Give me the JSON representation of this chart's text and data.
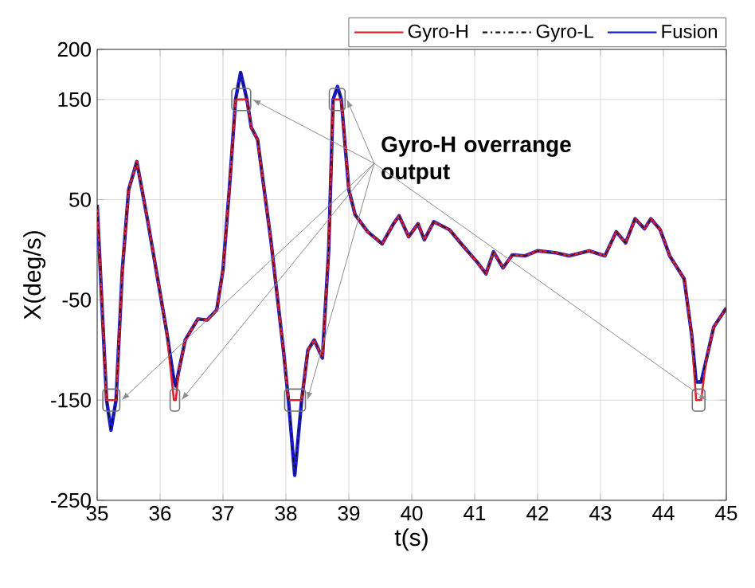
{
  "chart_data": {
    "type": "line",
    "xlabel": "t(s)",
    "ylabel": "X(deg/s)",
    "x": [
      35.0,
      35.08,
      35.15,
      35.22,
      35.3,
      35.4,
      35.5,
      35.63,
      35.8,
      35.94,
      36.1,
      36.22,
      36.25,
      36.3,
      36.4,
      36.6,
      36.75,
      36.9,
      37.0,
      37.1,
      37.2,
      37.28,
      37.38,
      37.45,
      37.55,
      37.76,
      37.96,
      38.04,
      38.14,
      38.25,
      38.35,
      38.45,
      38.58,
      38.68,
      38.75,
      38.82,
      38.88,
      39.0,
      39.1,
      39.3,
      39.53,
      39.7,
      39.8,
      39.95,
      40.1,
      40.2,
      40.35,
      40.6,
      40.8,
      41.05,
      41.18,
      41.3,
      41.45,
      41.6,
      41.8,
      42.0,
      42.3,
      42.5,
      42.82,
      43.07,
      43.25,
      43.4,
      43.55,
      43.7,
      43.8,
      43.95,
      44.1,
      44.33,
      44.45,
      44.52,
      44.6,
      44.68,
      44.8,
      45.0
    ],
    "series": [
      {
        "name": "Gyro-H",
        "color": "#e0202a",
        "line_style": "solid",
        "values": [
          45,
          -60,
          -150,
          -150,
          -150,
          -20,
          60,
          88,
          30,
          -21,
          -80,
          -150,
          -150,
          -120,
          -90,
          -69,
          -70,
          -60,
          -20,
          60,
          150,
          150,
          150,
          122,
          110,
          10,
          -100,
          -150,
          -150,
          -150,
          -100,
          -90,
          -108,
          0,
          150,
          150,
          150,
          60,
          35,
          18,
          6,
          25,
          34,
          13,
          26,
          10,
          28,
          20,
          5,
          -13,
          -24,
          -2,
          -18,
          -5,
          -6,
          -1,
          -3,
          -6,
          -1,
          -6,
          18,
          7,
          31,
          21,
          31,
          20,
          -6,
          -29,
          -85,
          -150,
          -150,
          -110,
          -77,
          -58
        ]
      },
      {
        "name": "Gyro-L",
        "color": "#111111",
        "line_style": "dashdot",
        "values": [
          45,
          -60,
          -150,
          -180,
          -150,
          -20,
          60,
          88,
          30,
          -21,
          -80,
          -130,
          -136,
          -120,
          -90,
          -69,
          -70,
          -60,
          -20,
          60,
          150,
          177,
          150,
          122,
          110,
          10,
          -100,
          -150,
          -225,
          -150,
          -100,
          -90,
          -108,
          0,
          150,
          163,
          150,
          60,
          35,
          18,
          6,
          25,
          34,
          13,
          26,
          10,
          28,
          20,
          5,
          -13,
          -24,
          -2,
          -18,
          -5,
          -6,
          -1,
          -3,
          -6,
          -1,
          -6,
          18,
          7,
          31,
          21,
          31,
          20,
          -6,
          -29,
          -85,
          -132,
          -132,
          -110,
          -77,
          -58
        ]
      },
      {
        "name": "Fusion",
        "color": "#1a1ad0",
        "line_style": "solid",
        "values": [
          45,
          -60,
          -150,
          -180,
          -150,
          -20,
          60,
          88,
          30,
          -21,
          -80,
          -130,
          -136,
          -120,
          -90,
          -69,
          -70,
          -60,
          -20,
          60,
          150,
          177,
          150,
          122,
          110,
          10,
          -100,
          -150,
          -225,
          -150,
          -100,
          -90,
          -108,
          0,
          150,
          163,
          150,
          60,
          35,
          18,
          6,
          25,
          34,
          13,
          26,
          10,
          28,
          20,
          5,
          -13,
          -24,
          -2,
          -18,
          -5,
          -6,
          -1,
          -3,
          -6,
          -1,
          -6,
          18,
          7,
          31,
          21,
          31,
          20,
          -6,
          -29,
          -85,
          -132,
          -132,
          -110,
          -77,
          -58
        ]
      }
    ],
    "xlim": [
      35,
      45
    ],
    "xticks": [
      35,
      36,
      37,
      38,
      39,
      40,
      41,
      42,
      43,
      44,
      45
    ],
    "ylim": [
      -250,
      200
    ],
    "yticks": [
      -250,
      -150,
      -50,
      50,
      150,
      200
    ],
    "grid": true,
    "legend": "top right",
    "annotations": [
      {
        "text": "Gyro-H overrange output",
        "x": 38.82,
        "y": 150
      }
    ]
  }
}
